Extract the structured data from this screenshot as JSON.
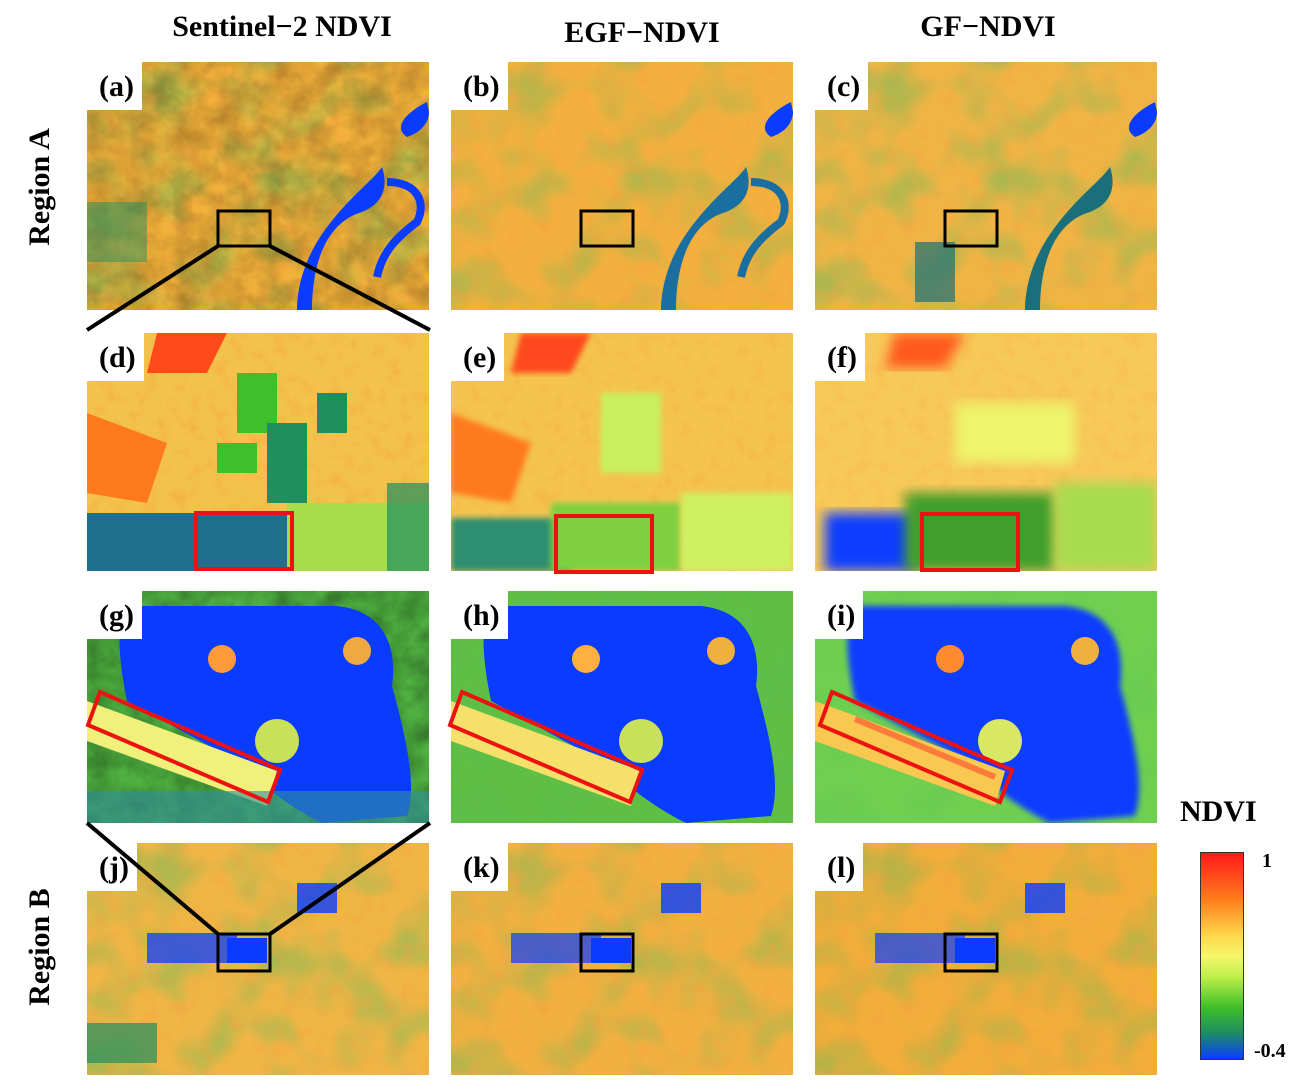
{
  "columns": [
    "Sentinel−2 NDVI",
    "EGF−NDVI",
    "GF−NDVI"
  ],
  "rows": [
    "Region A",
    "Region B"
  ],
  "panels": [
    "(a)",
    "(b)",
    "(c)",
    "(d)",
    "(e)",
    "(f)",
    "(g)",
    "(h)",
    "(i)",
    "(j)",
    "(k)",
    "(l)"
  ],
  "colorbar": {
    "title": "NDVI",
    "max": "1",
    "min": "-0.4",
    "colors": [
      "#ff1a1a",
      "#ff7a1a",
      "#ffd84a",
      "#f5f76a",
      "#bff04a",
      "#3fbf2a",
      "#1f8f5f",
      "#0a3cff"
    ]
  }
}
